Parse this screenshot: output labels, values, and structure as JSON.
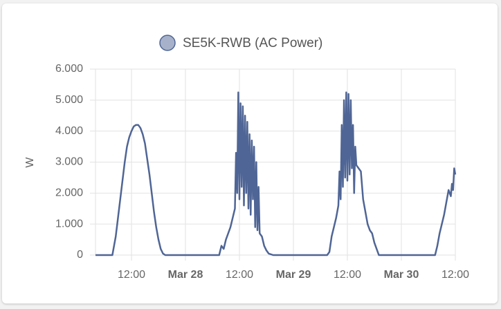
{
  "chart_data": {
    "type": "line",
    "y_label": "W",
    "series": [
      {
        "name": "SE5K-RWB (AC Power)",
        "color": "#4f6595",
        "values": [
          0,
          0,
          0,
          600,
          1200,
          1800,
          2400,
          3000,
          3500,
          3800,
          4000,
          4150,
          4200,
          4200,
          4100,
          3900,
          3600,
          3100,
          2600,
          2000,
          1400,
          900,
          500,
          200,
          50,
          0,
          0,
          300,
          200,
          500,
          700,
          900,
          1200,
          1500,
          3300,
          2000,
          5250,
          1800,
          4900,
          2200,
          4800,
          1600,
          4500,
          2000,
          4300,
          1500,
          3900,
          1300,
          3700,
          1800,
          3500,
          900,
          3000,
          800,
          2200,
          700,
          600,
          300,
          150,
          50,
          0,
          0,
          100,
          600,
          900,
          1200,
          1600,
          2700,
          1800,
          4200,
          2200,
          5000,
          2500,
          5250,
          2400,
          5200,
          2600,
          5000,
          2800,
          4200,
          2000,
          3500,
          2900,
          2800,
          2700,
          1800,
          1400,
          1000,
          800,
          700,
          400,
          200,
          0,
          0,
          300,
          700,
          1000,
          1300,
          1700,
          2100,
          1900,
          2300,
          2100,
          2800,
          2600
        ]
      }
    ],
    "x": [
      "Mar 27 04:00",
      "Mar 27 07:00",
      "Mar 27 07:45",
      "Mar 27 08:30",
      "Mar 27 09:00",
      "Mar 27 09:30",
      "Mar 27 10:00",
      "Mar 27 10:30",
      "Mar 27 11:00",
      "Mar 27 11:30",
      "Mar 27 12:00",
      "Mar 27 12:30",
      "Mar 27 13:00",
      "Mar 27 13:30",
      "Mar 27 14:00",
      "Mar 27 14:30",
      "Mar 27 15:00",
      "Mar 27 15:30",
      "Mar 27 16:00",
      "Mar 27 16:30",
      "Mar 27 17:00",
      "Mar 27 17:30",
      "Mar 27 18:00",
      "Mar 27 18:30",
      "Mar 27 19:00",
      "Mar 27 19:30",
      "Mar 28 07:30",
      "Mar 28 08:00",
      "Mar 28 08:30",
      "Mar 28 09:00",
      "Mar 28 09:30",
      "Mar 28 10:00",
      "Mar 28 10:30",
      "Mar 28 11:00",
      "Mar 28 11:15",
      "Mar 28 11:30",
      "Mar 28 11:45",
      "Mar 28 12:00",
      "Mar 28 12:15",
      "Mar 28 12:30",
      "Mar 28 12:45",
      "Mar 28 13:00",
      "Mar 28 13:15",
      "Mar 28 13:30",
      "Mar 28 13:45",
      "Mar 28 14:00",
      "Mar 28 14:15",
      "Mar 28 14:30",
      "Mar 28 14:45",
      "Mar 28 15:00",
      "Mar 28 15:15",
      "Mar 28 15:30",
      "Mar 28 15:45",
      "Mar 28 16:00",
      "Mar 28 16:15",
      "Mar 28 16:30",
      "Mar 28 17:00",
      "Mar 28 17:30",
      "Mar 28 18:00",
      "Mar 28 18:30",
      "Mar 28 19:30",
      "Mar 29 07:30",
      "Mar 29 08:00",
      "Mar 29 08:30",
      "Mar 29 09:00",
      "Mar 29 09:30",
      "Mar 29 10:00",
      "Mar 29 10:15",
      "Mar 29 10:30",
      "Mar 29 10:45",
      "Mar 29 11:00",
      "Mar 29 11:15",
      "Mar 29 11:30",
      "Mar 29 11:45",
      "Mar 29 12:00",
      "Mar 29 12:15",
      "Mar 29 12:30",
      "Mar 29 12:45",
      "Mar 29 13:00",
      "Mar 29 13:15",
      "Mar 29 13:30",
      "Mar 29 13:45",
      "Mar 29 14:00",
      "Mar 29 14:30",
      "Mar 29 15:00",
      "Mar 29 15:30",
      "Mar 29 16:00",
      "Mar 29 16:30",
      "Mar 29 17:00",
      "Mar 29 17:30",
      "Mar 29 18:00",
      "Mar 29 18:30",
      "Mar 29 19:00",
      "Mar 30 07:30",
      "Mar 30 08:00",
      "Mar 30 08:30",
      "Mar 30 09:00",
      "Mar 30 09:30",
      "Mar 30 10:00",
      "Mar 30 10:30",
      "Mar 30 11:00",
      "Mar 30 11:15",
      "Mar 30 11:30",
      "Mar 30 11:45",
      "Mar 30 12:00"
    ],
    "xlim": [
      "Mar 27 04:00",
      "Mar 30 12:00"
    ],
    "xticks": [
      {
        "value": "Mar 27 12:00",
        "label": "12:00"
      },
      {
        "value": "Mar 28 00:00",
        "label": "Mar 28"
      },
      {
        "value": "Mar 28 12:00",
        "label": "12:00"
      },
      {
        "value": "Mar 29 00:00",
        "label": "Mar 29"
      },
      {
        "value": "Mar 29 12:00",
        "label": "12:00"
      },
      {
        "value": "Mar 30 00:00",
        "label": "Mar 30"
      },
      {
        "value": "Mar 30 12:00",
        "label": "12:00"
      }
    ],
    "ylim": [
      0,
      6000
    ],
    "yticks": [
      0,
      {
        "value": 1000,
        "label": "1.000"
      },
      {
        "value": 2000,
        "label": "2.000"
      },
      {
        "value": 3000,
        "label": "3.000"
      },
      {
        "value": 4000,
        "label": "4.000"
      },
      {
        "value": 5000,
        "label": "5.000"
      },
      {
        "value": 6000,
        "label": "6.000"
      }
    ],
    "grid": true
  }
}
